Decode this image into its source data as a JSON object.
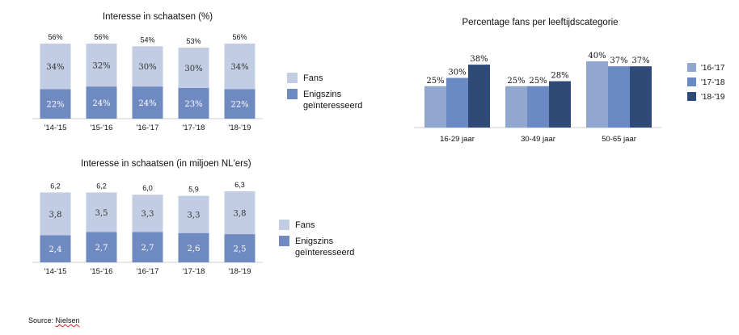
{
  "colors": {
    "fans": "#c2cde3",
    "enigszins": "#6f89c1",
    "s1617": "#92a7cf",
    "s1718": "#6b89c3",
    "s1819": "#2f4a77"
  },
  "source": {
    "prefix": "Source: ",
    "name": "Nielsen"
  },
  "chart_data": [
    {
      "type": "bar",
      "stacked": true,
      "title": "Interesse in schaatsen (%)",
      "categories": [
        "'14-'15",
        "'15-'16",
        "'16-'17",
        "'17-'18",
        "'18-'19"
      ],
      "series": [
        {
          "name": "Enigszins\ngeïnteresseerd",
          "values": [
            22,
            24,
            24,
            23,
            22
          ],
          "labels": [
            "22%",
            "24%",
            "24%",
            "23%",
            "22%"
          ]
        },
        {
          "name": "Fans",
          "values": [
            34,
            32,
            30,
            30,
            34
          ],
          "labels": [
            "34%",
            "32%",
            "30%",
            "30%",
            "34%"
          ]
        }
      ],
      "totals": [
        "56%",
        "56%",
        "54%",
        "53%",
        "56%"
      ],
      "legend": "right"
    },
    {
      "type": "bar",
      "stacked": true,
      "title": "Interesse in schaatsen (in miljoen NL'ers)",
      "categories": [
        "'14-'15",
        "'15-'16",
        "'16-'17",
        "'17-'18",
        "'18-'19"
      ],
      "series": [
        {
          "name": "Enigszins\ngeïnteresseerd",
          "values": [
            2.4,
            2.7,
            2.7,
            2.6,
            2.5
          ],
          "labels": [
            "2,4",
            "2,7",
            "2,7",
            "2,6",
            "2,5"
          ]
        },
        {
          "name": "Fans",
          "values": [
            3.8,
            3.5,
            3.3,
            3.3,
            3.8
          ],
          "labels": [
            "3,8",
            "3,5",
            "3,3",
            "3,3",
            "3,8"
          ]
        }
      ],
      "totals": [
        "6,2",
        "6,2",
        "6,0",
        "5,9",
        "6,3"
      ],
      "legend": "right"
    },
    {
      "type": "bar",
      "title": "Percentage fans per leeftijdscategorie",
      "categories": [
        "16-29 jaar",
        "30-49 jaar",
        "50-65 jaar"
      ],
      "series": [
        {
          "name": "'16-'17",
          "values": [
            25,
            25,
            40
          ],
          "labels": [
            "25%",
            "25%",
            "40%"
          ]
        },
        {
          "name": "'17-'18",
          "values": [
            30,
            25,
            37
          ],
          "labels": [
            "30%",
            "25%",
            "37%"
          ]
        },
        {
          "name": "'18-'19",
          "values": [
            38,
            28,
            37
          ],
          "labels": [
            "38%",
            "28%",
            "37%"
          ]
        }
      ],
      "legend": "right"
    }
  ]
}
